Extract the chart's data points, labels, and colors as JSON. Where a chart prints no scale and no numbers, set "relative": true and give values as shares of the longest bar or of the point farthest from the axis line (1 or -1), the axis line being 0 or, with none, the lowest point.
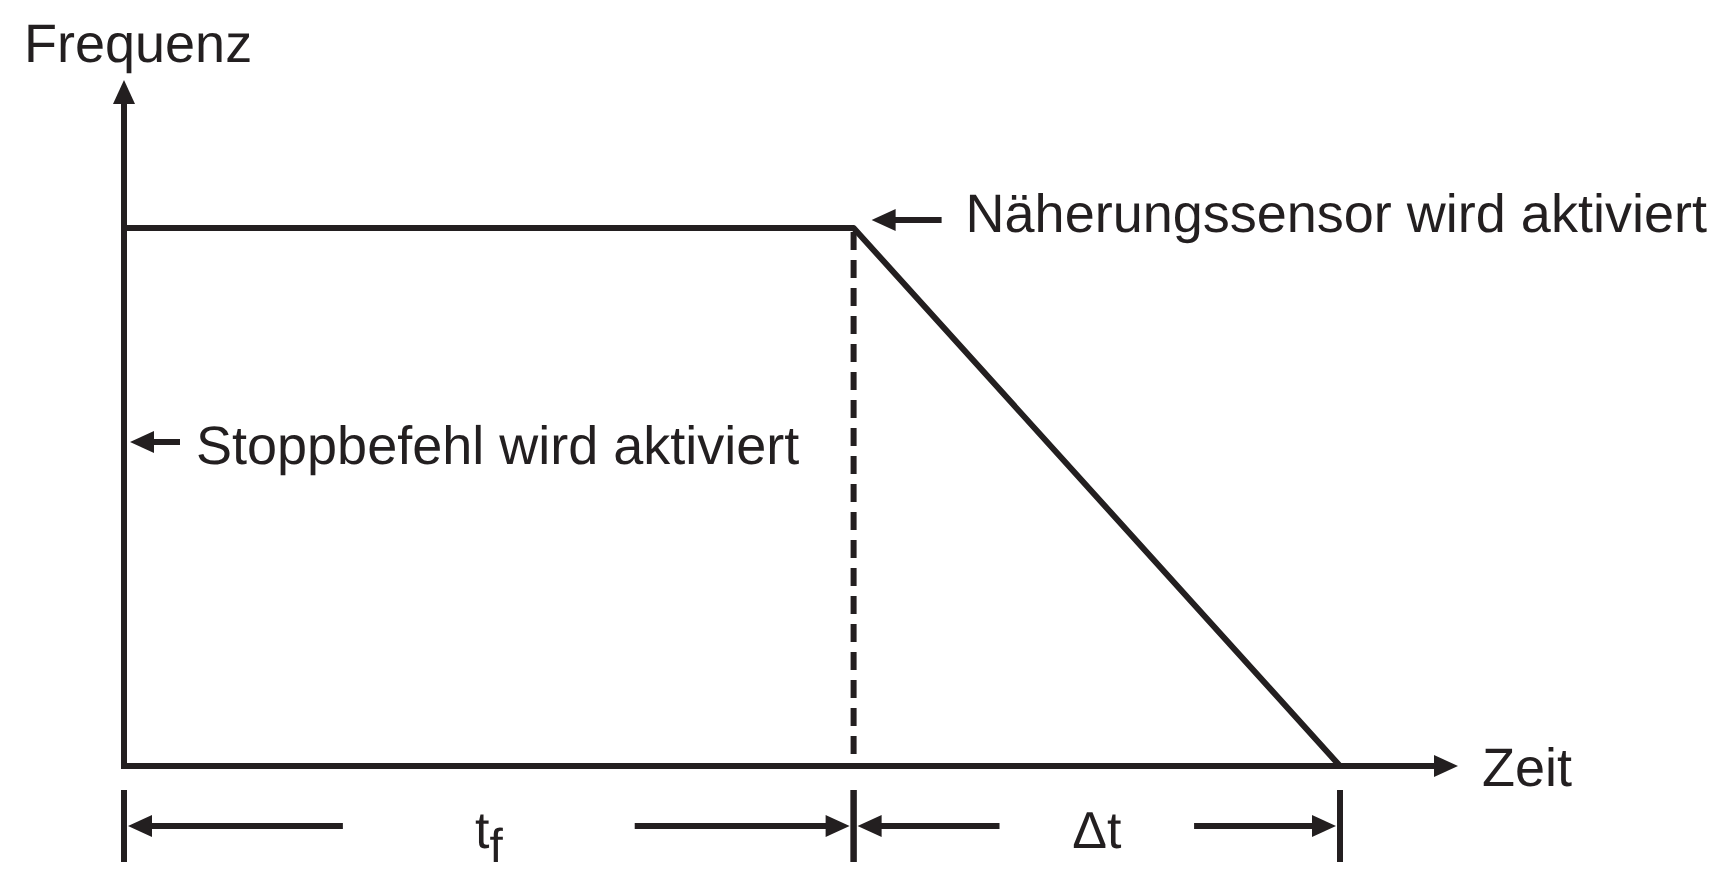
{
  "chart_data": {
    "type": "line",
    "relative": true,
    "xlabel": "Zeit",
    "ylabel": "Frequenz",
    "categories": [
      null,
      null,
      null,
      null,
      null,
      null
    ],
    "series": [
      {
        "color": "#231f20",
        "values": [
          1,
          1,
          1,
          1,
          0.5,
          0
        ]
      }
    ],
    "annotations": [
      "Näherungssensor wird aktiviert",
      "Stoppbefehl wird aktiviert",
      "t$_{f}$",
      "Δt"
    ]
  }
}
